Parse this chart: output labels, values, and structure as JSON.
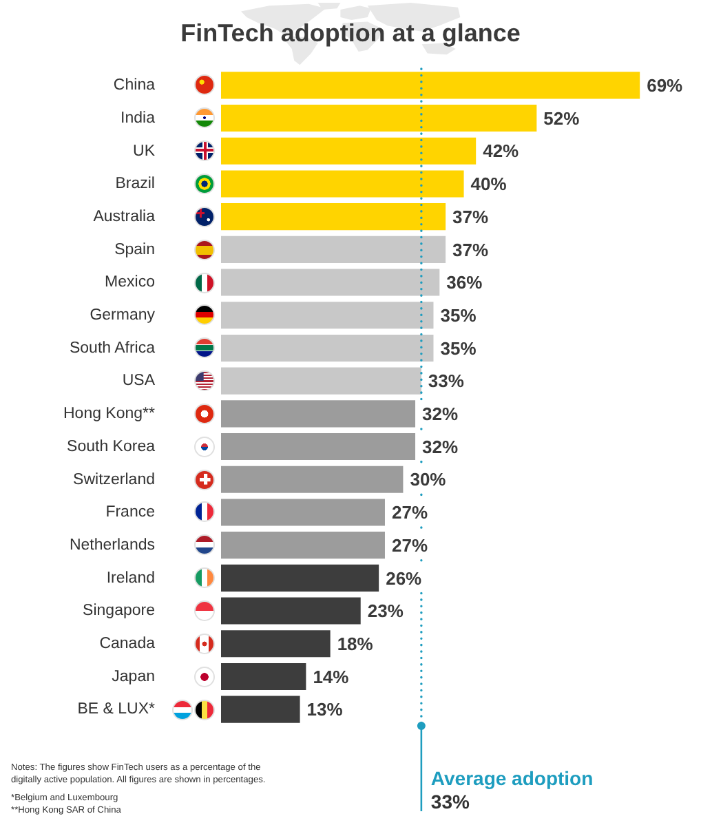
{
  "chart_data": {
    "type": "bar",
    "orientation": "horizontal",
    "title": "FinTech adoption at a glance",
    "categories": [
      "China",
      "India",
      "UK",
      "Brazil",
      "Australia",
      "Spain",
      "Mexico",
      "Germany",
      "South Africa",
      "USA",
      "Hong Kong**",
      "South Korea",
      "Switzerland",
      "France",
      "Netherlands",
      "Ireland",
      "Singapore",
      "Canada",
      "Japan",
      "BE & LUX*"
    ],
    "values": [
      69,
      52,
      42,
      40,
      37,
      37,
      36,
      35,
      35,
      33,
      32,
      32,
      30,
      27,
      27,
      26,
      23,
      18,
      14,
      13
    ],
    "colors": [
      "#ffd400",
      "#ffd400",
      "#ffd400",
      "#ffd400",
      "#ffd400",
      "#c8c8c8",
      "#c8c8c8",
      "#c8c8c8",
      "#c8c8c8",
      "#c8c8c8",
      "#9c9c9c",
      "#9c9c9c",
      "#9c9c9c",
      "#9c9c9c",
      "#9c9c9c",
      "#3d3d3d",
      "#3d3d3d",
      "#3d3d3d",
      "#3d3d3d",
      "#3d3d3d"
    ],
    "value_labels": [
      "69%",
      "52%",
      "42%",
      "40%",
      "37%",
      "37%",
      "36%",
      "35%",
      "35%",
      "33%",
      "32%",
      "32%",
      "30%",
      "27%",
      "27%",
      "26%",
      "23%",
      "18%",
      "14%",
      "13%"
    ],
    "ref_lines": [
      {
        "axis": "x",
        "value": 33,
        "label": "Average adoption\n33%",
        "color": "#1e9dbf",
        "line_style": "dotted"
      }
    ],
    "annotations": [
      "Notes: The figures show FinTech users as a percentage of the digitally active population. All figures are shown in percentages.",
      "*Belgium and Luxembourg",
      "**Hong Kong SAR of China"
    ]
  }
}
